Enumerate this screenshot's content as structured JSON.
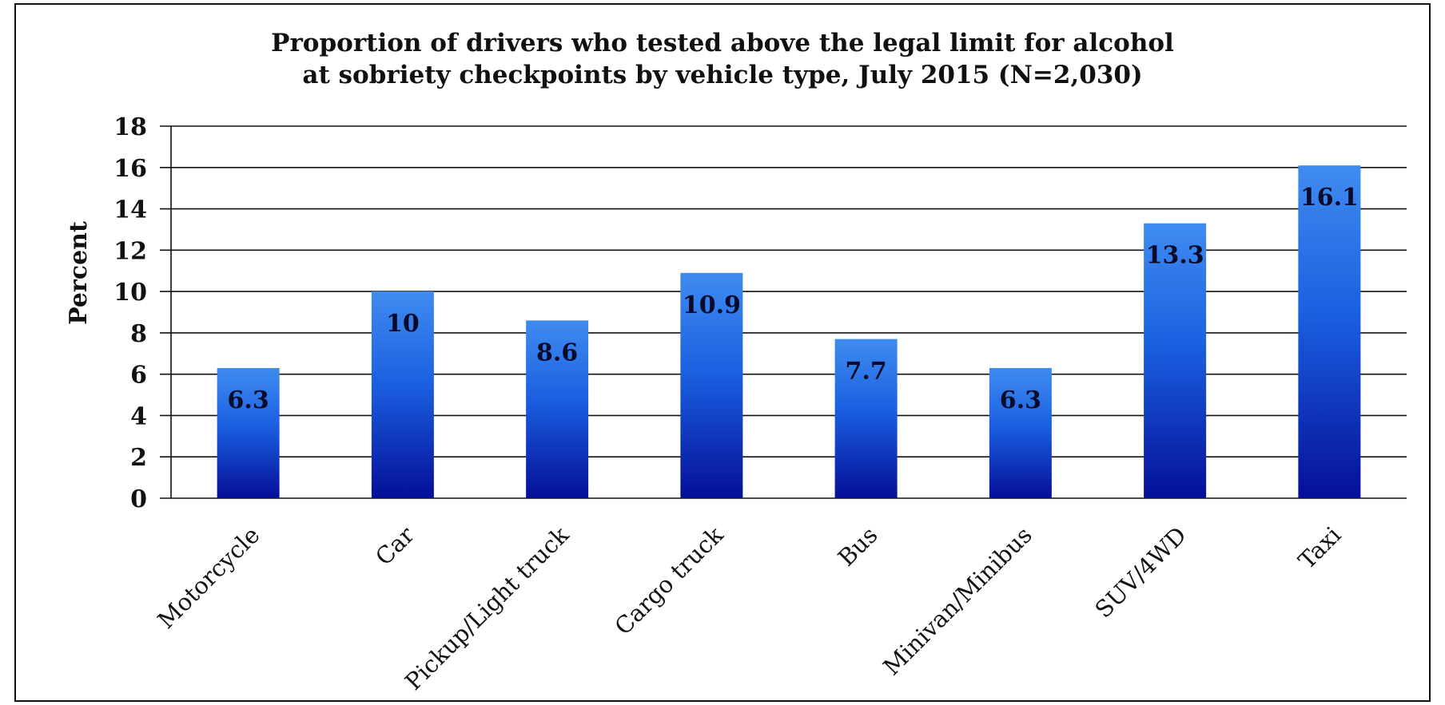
{
  "chart_data": {
    "type": "bar",
    "title_lines": [
      "Proportion of drivers who tested above the legal limit for alcohol",
      "at sobriety checkpoints by vehicle type, July 2015 (N=2,030)"
    ],
    "ylabel": "Percent",
    "xlabel": "",
    "ylim": [
      0,
      18
    ],
    "yticks": [
      "0",
      "2",
      "4",
      "6",
      "8",
      "10",
      "12",
      "14",
      "16",
      "18"
    ],
    "categories": [
      "Motorcycle",
      "Car",
      "Pickup/Light truck",
      "Cargo truck",
      "Bus",
      "Minivan/Minibus",
      "SUV/4WD",
      "Taxi"
    ],
    "values": [
      6.3,
      10,
      8.6,
      10.9,
      7.7,
      6.3,
      13.3,
      16.1
    ],
    "value_labels": [
      "6.3",
      "10",
      "8.6",
      "10.9",
      "7.7",
      "6.3",
      "13.3",
      "16.1"
    ],
    "grid": true,
    "legend": "none",
    "bar_color_top": "#3f8cf0",
    "bar_color_bottom": "#050f98"
  }
}
